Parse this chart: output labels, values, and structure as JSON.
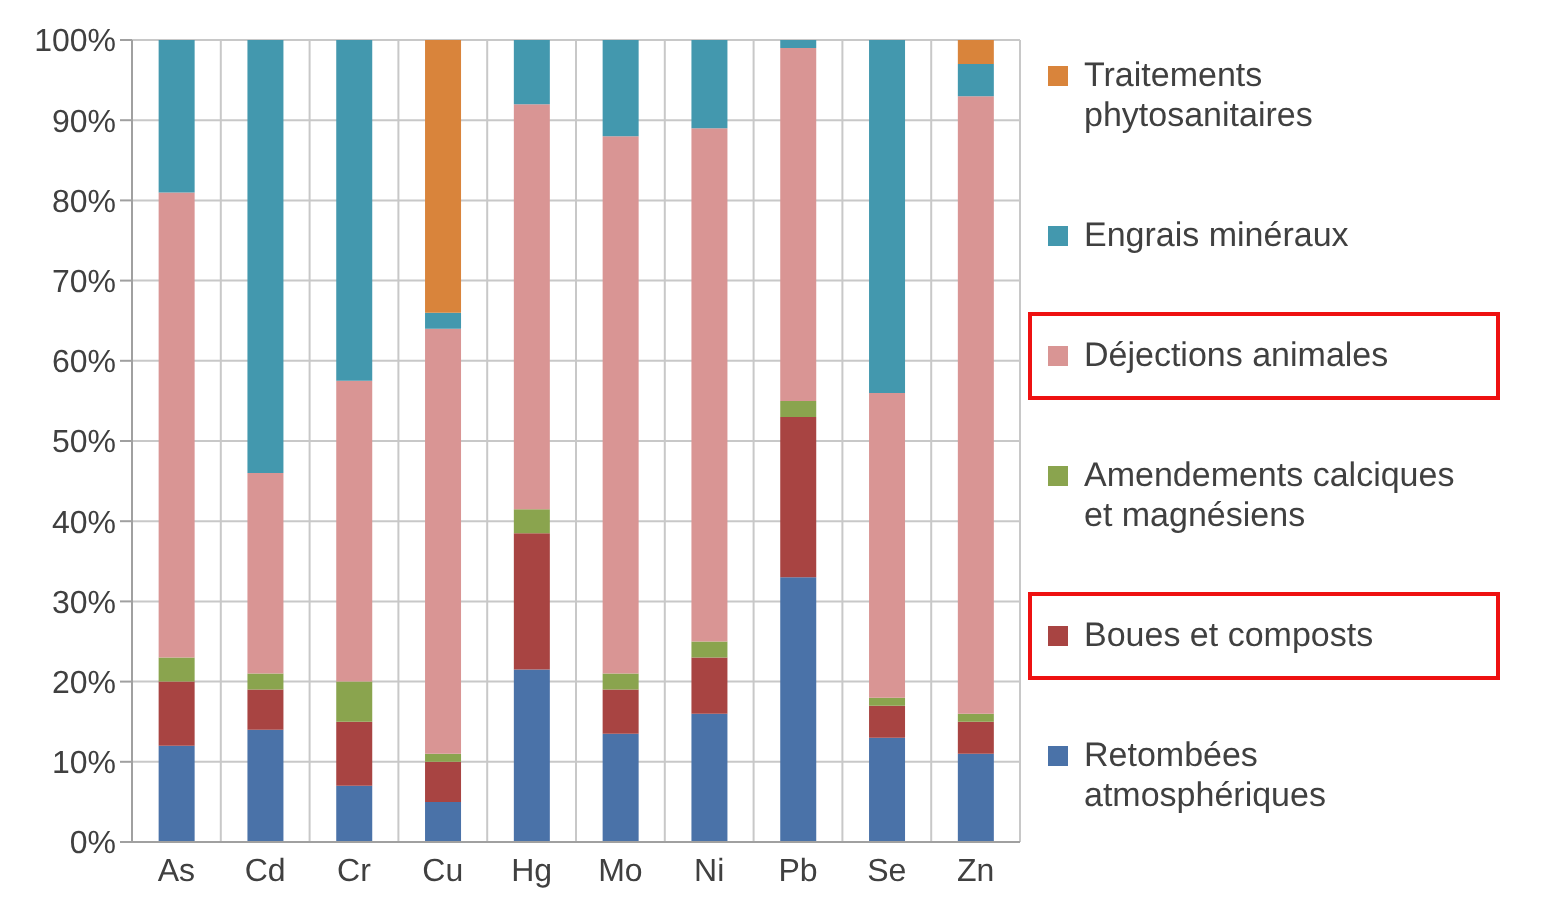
{
  "chart_data": {
    "type": "bar",
    "stacked": true,
    "categories": [
      "As",
      "Cd",
      "Cr",
      "Cu",
      "Hg",
      "Mo",
      "Ni",
      "Pb",
      "Se",
      "Zn"
    ],
    "series": [
      {
        "name": "Retombées atmosphériques",
        "color": "#4a72a8",
        "values": [
          12,
          14,
          7,
          5,
          21.5,
          13.5,
          16,
          33,
          13,
          11
        ]
      },
      {
        "name": "Boues et composts",
        "color": "#a84442",
        "values": [
          8,
          5,
          8,
          5,
          17,
          5.5,
          7,
          20,
          4,
          4
        ]
      },
      {
        "name": "Amendements calciques et magnésiens",
        "color": "#8aa44e",
        "values": [
          3,
          2,
          5,
          1,
          3,
          2,
          2,
          2,
          1,
          1
        ]
      },
      {
        "name": "Déjections animales",
        "color": "#d99594",
        "values": [
          58,
          25,
          37.5,
          53,
          50.5,
          67,
          64,
          44,
          38,
          77
        ]
      },
      {
        "name": "Engrais minéraux",
        "color": "#4398ae",
        "values": [
          19,
          54,
          42.5,
          2,
          8,
          12,
          11,
          1,
          44,
          4
        ]
      },
      {
        "name": "Traitements phytosanitaires",
        "color": "#d9843b",
        "values": [
          0,
          0,
          0,
          34,
          0,
          0,
          0,
          0,
          0,
          3
        ]
      }
    ],
    "ylim": [
      0,
      100
    ],
    "yticks": [
      {
        "value": 0,
        "label": "0%"
      },
      {
        "value": 10,
        "label": "10%"
      },
      {
        "value": 20,
        "label": "20%"
      },
      {
        "value": 30,
        "label": "30%"
      },
      {
        "value": 40,
        "label": "40%"
      },
      {
        "value": 50,
        "label": "50%"
      },
      {
        "value": 60,
        "label": "60%"
      },
      {
        "value": 70,
        "label": "70%"
      },
      {
        "value": 80,
        "label": "80%"
      },
      {
        "value": 90,
        "label": "90%"
      },
      {
        "value": 100,
        "label": "100%"
      }
    ],
    "grid": true,
    "legend": "right"
  }
}
